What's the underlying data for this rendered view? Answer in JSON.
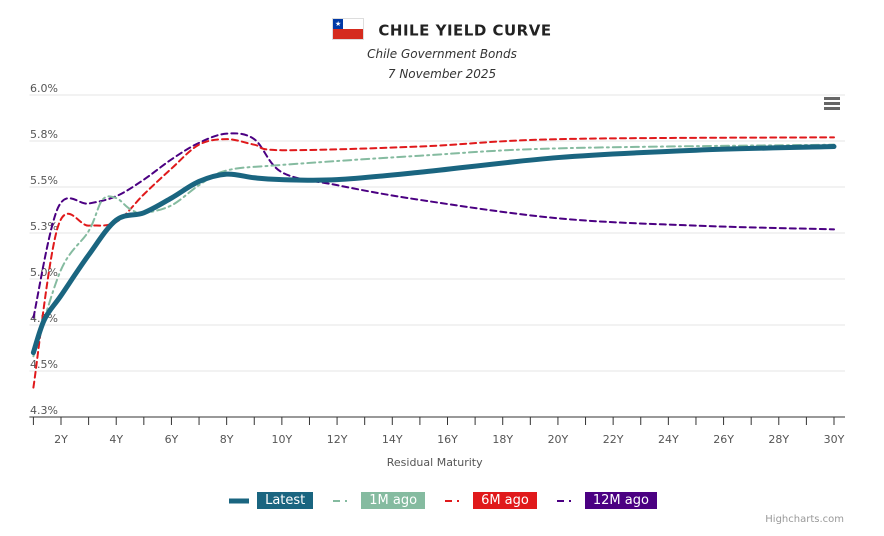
{
  "header": {
    "title": "CHILE YIELD CURVE",
    "subtitle": "Chile Government Bonds",
    "date": "7 November 2025",
    "flag_icon": "chile-flag-icon"
  },
  "credit": "Highcharts.com",
  "chart_data": {
    "type": "line",
    "title": "CHILE YIELD CURVE",
    "xlabel": "Residual Maturity",
    "ylabel": "",
    "xlim": [
      1,
      30
    ],
    "ylim": [
      4.25,
      6.0
    ],
    "x_ticks": [
      "2Y",
      "4Y",
      "6Y",
      "8Y",
      "10Y",
      "12Y",
      "14Y",
      "16Y",
      "18Y",
      "20Y",
      "22Y",
      "24Y",
      "26Y",
      "28Y",
      "30Y"
    ],
    "y_ticks": [
      {
        "v": 4.25,
        "label": "4.3%"
      },
      {
        "v": 4.5,
        "label": "4.5%"
      },
      {
        "v": 4.75,
        "label": "4.8%"
      },
      {
        "v": 5.0,
        "label": "5.0%"
      },
      {
        "v": 5.25,
        "label": "5.3%"
      },
      {
        "v": 5.5,
        "label": "5.5%"
      },
      {
        "v": 5.75,
        "label": "5.8%"
      },
      {
        "v": 6.0,
        "label": "6.0%"
      }
    ],
    "grid": true,
    "legend_position": "bottom-center",
    "series": [
      {
        "name": "Latest",
        "color": "#1a6580",
        "style": "solid",
        "x": [
          1,
          1.4,
          2,
          3,
          4,
          5,
          6,
          7,
          8,
          9,
          10,
          12,
          15,
          20,
          25,
          30
        ],
        "y": [
          4.6,
          4.78,
          4.91,
          5.13,
          5.32,
          5.36,
          5.44,
          5.53,
          5.57,
          5.55,
          5.54,
          5.54,
          5.58,
          5.66,
          5.7,
          5.72
        ]
      },
      {
        "name": "1M ago",
        "color": "#85bba0",
        "style": "dashdot",
        "x": [
          1,
          2,
          3,
          3.5,
          4,
          4.5,
          5,
          6,
          7,
          8,
          10,
          15,
          20,
          30
        ],
        "y": [
          4.58,
          5.05,
          5.26,
          5.43,
          5.44,
          5.38,
          5.36,
          5.4,
          5.51,
          5.59,
          5.62,
          5.67,
          5.71,
          5.73
        ]
      },
      {
        "name": "6M ago",
        "color": "#e0191b",
        "style": "dashed",
        "x": [
          1,
          1.9,
          3,
          4,
          5,
          6,
          7,
          8,
          9,
          10,
          15,
          20,
          30
        ],
        "y": [
          4.41,
          5.29,
          5.29,
          5.31,
          5.46,
          5.6,
          5.73,
          5.76,
          5.73,
          5.7,
          5.72,
          5.76,
          5.77
        ]
      },
      {
        "name": "12M ago",
        "color": "#4b0082",
        "style": "dashed",
        "x": [
          1,
          1.9,
          3,
          4,
          5,
          6,
          7,
          8,
          9,
          10,
          12,
          15,
          20,
          25,
          30
        ],
        "y": [
          4.79,
          5.39,
          5.41,
          5.45,
          5.54,
          5.65,
          5.74,
          5.79,
          5.76,
          5.58,
          5.51,
          5.43,
          5.33,
          5.29,
          5.27
        ]
      }
    ]
  }
}
